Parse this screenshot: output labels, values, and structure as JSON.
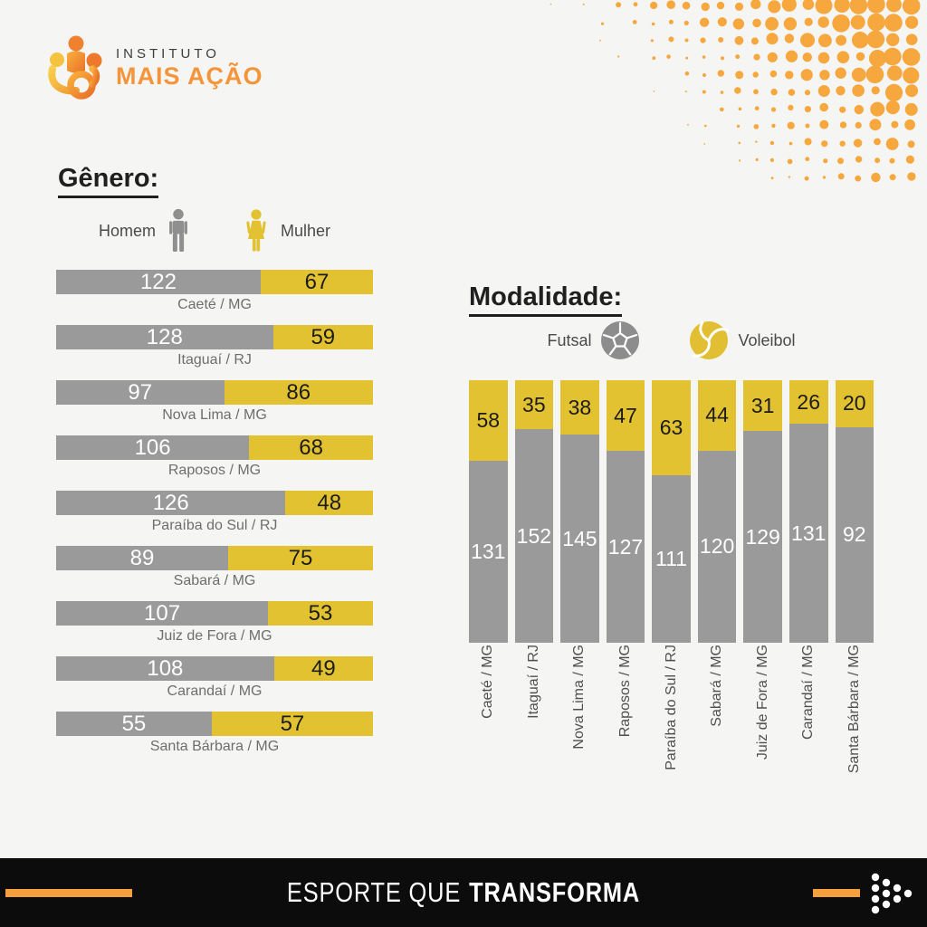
{
  "logo": {
    "line1": "INSTITUTO",
    "line2": "MAIS AÇÃO"
  },
  "gender": {
    "title": "Gênero:",
    "legend": [
      {
        "label": "Homem",
        "icon": "man-icon",
        "color": "#8F8F8F"
      },
      {
        "label": "Mulher",
        "icon": "woman-icon",
        "color": "#E2C230"
      }
    ]
  },
  "modality": {
    "title": "Modalidade:",
    "legend": [
      {
        "label": "Futsal",
        "icon": "soccer-ball-icon",
        "color": "#8D8D8D"
      },
      {
        "label": "Voleibol",
        "icon": "volleyball-icon",
        "color": "#E2BE33"
      }
    ]
  },
  "footer": {
    "text_regular": "ESPORTE QUE",
    "text_bold": "TRANSFORMA"
  },
  "colors": {
    "bar_gray": "#9A9A9A",
    "bar_yellow": "#E2C230",
    "brand_orange": "#F5953B",
    "halftone_orange": "#F6A73E",
    "background": "#F5F5F3",
    "footer_black": "#0C0C0C",
    "value_on_gray": "#FFFFFF",
    "value_on_yellow": "#1C1C1C",
    "city_label_gray": "#6E6E6E"
  },
  "chart_data": [
    {
      "type": "bar",
      "orientation": "horizontal",
      "stacked": true,
      "title": "Gênero:",
      "categories": [
        "Caeté / MG",
        "Itaguaí / RJ",
        "Nova Lima / MG",
        "Raposos / MG",
        "Paraíba do Sul / RJ",
        "Sabará / MG",
        "Juiz de Fora / MG",
        "Carandaí / MG",
        "Santa Bárbara / MG"
      ],
      "series": [
        {
          "name": "Homem",
          "color": "#9A9A9A",
          "values": [
            122,
            128,
            97,
            106,
            126,
            89,
            107,
            108,
            55
          ]
        },
        {
          "name": "Mulher",
          "color": "#E2C230",
          "values": [
            67,
            59,
            86,
            68,
            48,
            75,
            53,
            49,
            57
          ]
        }
      ],
      "legend_position": "top"
    },
    {
      "type": "bar",
      "orientation": "vertical",
      "stacked": "percent",
      "title": "Modalidade:",
      "categories": [
        "Caeté / MG",
        "Itaguaí / RJ",
        "Nova Lima / MG",
        "Raposos / MG",
        "Paraíba do Sul / RJ",
        "Sabará / MG",
        "Juiz de Fora / MG",
        "Carandaí / MG",
        "Santa Bárbara / MG"
      ],
      "series": [
        {
          "name": "Futsal",
          "color": "#9A9A9A",
          "values": [
            131,
            152,
            145,
            127,
            111,
            120,
            129,
            131,
            92
          ]
        },
        {
          "name": "Voleibol",
          "color": "#E2C230",
          "values": [
            58,
            35,
            38,
            47,
            63,
            44,
            31,
            26,
            20
          ]
        }
      ],
      "legend_position": "top"
    }
  ]
}
